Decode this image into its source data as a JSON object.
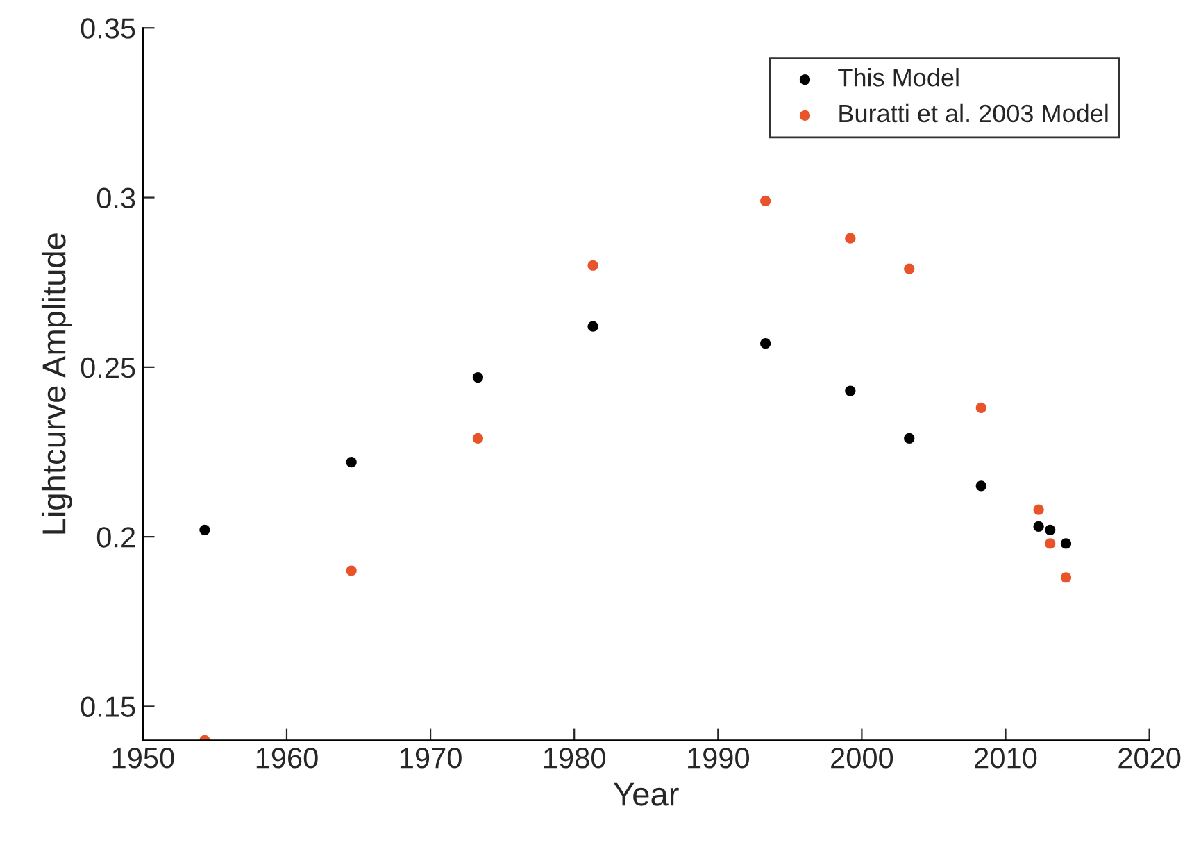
{
  "chart_data": {
    "type": "scatter",
    "xlabel": "Year",
    "ylabel": "Lightcurve Amplitude",
    "xlim": [
      1950,
      2020
    ],
    "xticks": [
      1950,
      1960,
      1970,
      1980,
      1990,
      2000,
      2010,
      2020
    ],
    "ylim": [
      0.14,
      0.35
    ],
    "yticks": [
      0.15,
      0.2,
      0.25,
      0.3,
      0.35
    ],
    "grid": false,
    "legend": "top right",
    "marker": "circle",
    "series": [
      {
        "name": "This Model",
        "color": "#000000",
        "x": [
          1954.3,
          1964.5,
          1973.3,
          1981.3,
          1993.3,
          1999.2,
          2003.3,
          2008.3,
          2012.3,
          2013.1,
          2014.2
        ],
        "values": [
          0.202,
          0.222,
          0.247,
          0.262,
          0.257,
          0.243,
          0.229,
          0.215,
          0.203,
          0.202,
          0.198
        ]
      },
      {
        "name": "Buratti et al. 2003 Model",
        "color": "#e8532a",
        "x": [
          1954.3,
          1964.5,
          1973.3,
          1981.3,
          1993.3,
          1999.2,
          2003.3,
          2008.3,
          2012.3,
          2013.1,
          2014.2
        ],
        "values": [
          0.14,
          0.19,
          0.229,
          0.28,
          0.299,
          0.288,
          0.279,
          0.238,
          0.208,
          0.198,
          0.188
        ]
      }
    ]
  }
}
